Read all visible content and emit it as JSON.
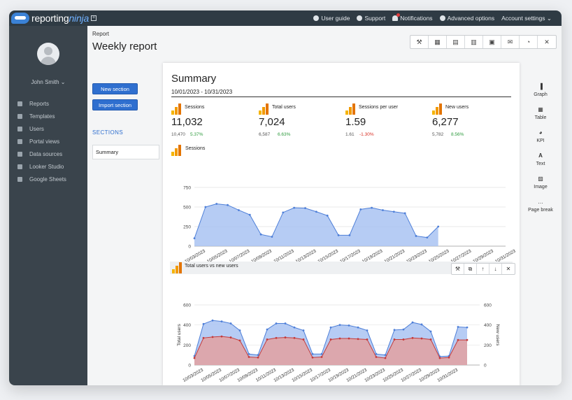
{
  "app": {
    "logo_prefix": "reporting",
    "logo_suffix": "ninja",
    "expand_glyph": "+"
  },
  "topnav": {
    "items": [
      {
        "label": "User guide",
        "icon": "user-guide-icon"
      },
      {
        "label": "Support",
        "icon": "support-icon"
      },
      {
        "label": "Notifications",
        "icon": "bell-icon"
      },
      {
        "label": "Advanced options",
        "icon": "plus-circle-icon"
      },
      {
        "label": "Account settings ⌄",
        "icon": ""
      }
    ]
  },
  "sidebar": {
    "username": "John Smith ⌄",
    "items": [
      {
        "label": "Reports",
        "icon": "reports-icon"
      },
      {
        "label": "Templates",
        "icon": "templates-icon"
      },
      {
        "label": "Users",
        "icon": "users-icon"
      },
      {
        "label": "Portal views",
        "icon": "folder-icon"
      },
      {
        "label": "Data sources",
        "icon": "database-icon"
      },
      {
        "label": "Looker Studio",
        "icon": "looker-icon"
      },
      {
        "label": "Google Sheets",
        "icon": "sheets-icon"
      }
    ]
  },
  "page": {
    "breadcrumb": "Report",
    "title": "Weekly report",
    "new_section": "New section",
    "import_section": "Import section",
    "sections_heading": "SECTIONS",
    "section_item": "Summary"
  },
  "toolbar": {
    "icons": [
      "wrench-icon",
      "calendar-icon",
      "pdf-icon",
      "excel-icon",
      "database-icon",
      "email-icon",
      "clock-icon",
      "trash-icon"
    ],
    "glyphs": [
      "⚒",
      "▦",
      "▤",
      "▥",
      "▣",
      "✉",
      "◔",
      "✕"
    ]
  },
  "summary": {
    "title": "Summary",
    "date_range": "10/01/2023 - 10/31/2023",
    "kpis": [
      {
        "label": "Sessions",
        "value": "11,032",
        "previous": "10,470",
        "change": "5.37%",
        "trend": "up"
      },
      {
        "label": "Total users",
        "value": "7,024",
        "previous": "6,587",
        "change": "6.63%",
        "trend": "up"
      },
      {
        "label": "Sessions per user",
        "value": "1.59",
        "previous": "1.61",
        "change": "-1.30%",
        "trend": "down"
      },
      {
        "label": "New users",
        "value": "6,277",
        "previous": "5,782",
        "change": "8.56%",
        "trend": "up"
      }
    ],
    "colors": {
      "up": "#2e9b3e",
      "down": "#d93025"
    }
  },
  "chart1_label": "Sessions",
  "chart2_label": "Total users vs new users",
  "chart2_tools": {
    "icons": [
      "wrench-icon",
      "copy-icon",
      "move-up-icon",
      "move-down-icon",
      "trash-icon"
    ],
    "glyphs": [
      "⚒",
      "⧉",
      "↑",
      "↓",
      "✕"
    ]
  },
  "right_panel": [
    {
      "label": "Graph",
      "icon": "graph-icon",
      "glyph": "▐"
    },
    {
      "label": "Table",
      "icon": "table-icon",
      "glyph": "▦"
    },
    {
      "label": "KPI",
      "icon": "kpi-icon",
      "glyph": "◕"
    },
    {
      "label": "Text",
      "icon": "text-icon",
      "glyph": "A"
    },
    {
      "label": "Image",
      "icon": "image-icon",
      "glyph": "▨"
    },
    {
      "label": "Page break",
      "icon": "page-break-icon",
      "glyph": "…"
    }
  ],
  "chart_data": [
    {
      "type": "area",
      "title": "Sessions",
      "x_tick_labels": [
        "10/03/2023",
        "10/05/2023",
        "10/07/2023",
        "10/09/2023",
        "10/11/2023",
        "10/13/2023",
        "10/15/2023",
        "10/17/2023",
        "10/19/2023",
        "10/21/2023",
        "10/23/2023",
        "10/25/2023",
        "10/27/2023",
        "10/29/2023",
        "10/31/2023"
      ],
      "x_days": [
        2,
        3,
        4,
        5,
        6,
        7,
        8,
        9,
        10,
        11,
        12,
        13,
        14,
        15,
        16,
        17,
        18,
        19,
        20,
        21,
        22,
        23,
        24
      ],
      "ylim": [
        0,
        750
      ],
      "y_ticks": [
        0,
        250,
        500,
        750
      ],
      "series": [
        {
          "name": "Sessions",
          "color": "#4e7fd8",
          "fill": "#a9c3f2",
          "values": [
            100,
            500,
            540,
            525,
            460,
            400,
            150,
            120,
            430,
            490,
            485,
            440,
            390,
            140,
            140,
            470,
            490,
            460,
            440,
            420,
            130,
            110,
            250
          ]
        }
      ],
      "legend": "bottom"
    },
    {
      "type": "area",
      "title": "Total users vs new users",
      "x_tick_labels": [
        "10/03/2023",
        "10/05/2023",
        "10/07/2023",
        "10/09/2023",
        "10/11/2023",
        "10/13/2023",
        "10/15/2023",
        "10/17/2023",
        "10/19/2023",
        "10/21/2023",
        "10/23/2023",
        "10/25/2023",
        "10/27/2023",
        "10/29/2023",
        "10/31/2023"
      ],
      "x_days": [
        2,
        3,
        4,
        5,
        6,
        7,
        8,
        9,
        10,
        11,
        12,
        13,
        14,
        15,
        16,
        17,
        18,
        19,
        20,
        21,
        22,
        23,
        24,
        25,
        26,
        27,
        28,
        29,
        30,
        31,
        32
      ],
      "ylim": [
        0,
        600
      ],
      "y_ticks": [
        0,
        200,
        400,
        600
      ],
      "ylabel_left": "Total users",
      "ylabel_right": "New users",
      "series": [
        {
          "name": "Total users",
          "color": "#4e7fd8",
          "fill": "#a9c3f2",
          "values": [
            90,
            410,
            445,
            435,
            415,
            345,
            110,
            100,
            355,
            415,
            415,
            375,
            345,
            110,
            110,
            375,
            400,
            395,
            375,
            345,
            110,
            100,
            350,
            355,
            425,
            405,
            335,
            85,
            90,
            380,
            375
          ]
        },
        {
          "name": "New users",
          "color": "#c43b3b",
          "fill": "#e3a0a0",
          "values": [
            70,
            270,
            280,
            285,
            275,
            245,
            80,
            75,
            255,
            270,
            275,
            270,
            255,
            75,
            80,
            255,
            265,
            265,
            260,
            255,
            80,
            70,
            255,
            255,
            270,
            265,
            255,
            70,
            75,
            250,
            250
          ]
        }
      ],
      "legend": "bottom"
    }
  ]
}
